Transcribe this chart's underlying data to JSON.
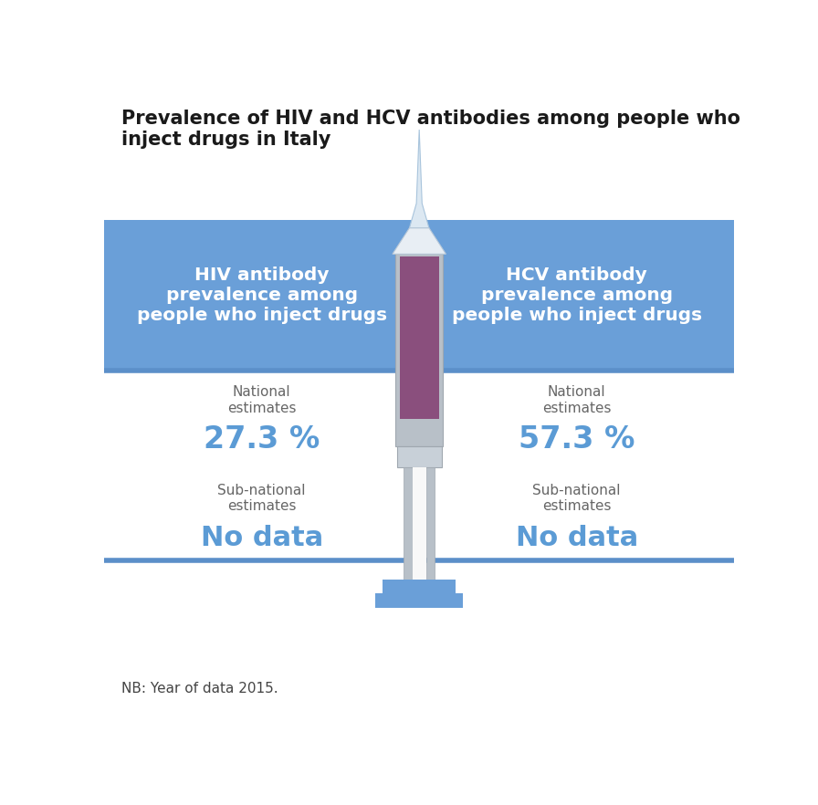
{
  "title": "Prevalence of HIV and HCV antibodies among people who\ninject drugs in Italy",
  "title_fontsize": 15,
  "background_color": "#ffffff",
  "blue_band_color": "#6a9fd8",
  "separator_color": "#5b8fc9",
  "left_header": "HIV antibody\nprevalence among\npeople who inject drugs",
  "right_header": "HCV antibody\nprevalence among\npeople who inject drugs",
  "header_text_color": "#ffffff",
  "header_fontsize": 14.5,
  "national_label": "National\nestimates",
  "subnational_label": "Sub-national\nestimates",
  "label_color": "#666666",
  "label_fontsize": 11,
  "hiv_national": "27.3 %",
  "hcv_national": "57.3 %",
  "hiv_subnational": "No data",
  "hcv_subnational": "No data",
  "value_color": "#5b9bd5",
  "value_fontsize_national": 24,
  "nodata_fontsize": 22,
  "footnote": "NB: Year of data 2015.",
  "footnote_fontsize": 11,
  "syringe_gray": "#b8c0c8",
  "syringe_white": "#f0f2f4",
  "syringe_plunger": "#8a4f7d",
  "syringe_blue": "#6a9fd8",
  "syringe_dark_gray": "#a0a8b0"
}
